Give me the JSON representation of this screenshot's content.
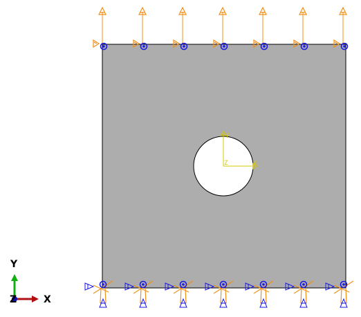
{
  "viewport": {
    "name": "abaqus-model-viewport",
    "background_color": "#ffffff"
  },
  "model": {
    "plate_fill_color": "#adadad",
    "plate_edge_color": "#000000",
    "hole_fill_color": "#ffffff",
    "load_arrow_color": "#f0901a",
    "bc_symbol_color": "#1a1ae6"
  },
  "csys": {
    "x_label": "X",
    "y_label": "Y",
    "z_label": "Z",
    "color": "#d8c800"
  },
  "triad": {
    "x_label": "X",
    "y_label": "Y",
    "z_label": "Z",
    "x_color": "#b01010",
    "y_color": "#10b010",
    "z_color": "#1010b0"
  }
}
